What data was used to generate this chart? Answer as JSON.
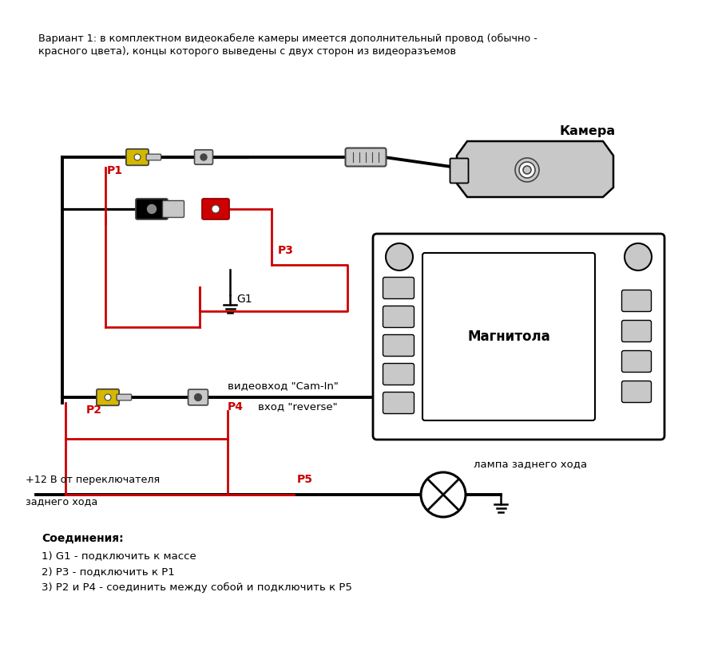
{
  "bg_color": "#ffffff",
  "title_line1": "Вариант 1: в комплектном видеокабеле камеры имеется дополнительный провод (обычно -",
  "title_line2": "красного цвета), концы которого выведены с двух сторон из видеоразъемов",
  "camera_label": "Камера",
  "magnit_label": "Магнитола",
  "p1_label": "P1",
  "p2_label": "P2",
  "p3_label": "P3",
  "p4_label": "P4",
  "p5_label": "P5",
  "g1_label": "G1",
  "camIn_label": "видеовход \"Cam-In\"",
  "reverse_label": "вход \"reverse\"",
  "lamp_label": "лампа заднего хода",
  "plus12_label": "+12 В от переключателя",
  "plus12_label2": "заднего хода",
  "connections_title": "Соединения:",
  "conn1": "1) G1 - подключить к массе",
  "conn2": "2) P3 - подключить к P1",
  "conn3": "3) P2 и P4 - соединить между собой и подключить к P5",
  "black": "#000000",
  "red": "#cc0000",
  "yellow": "#d4b800",
  "gray": "#888888",
  "darkgray": "#444444",
  "lightgray": "#c8c8c8",
  "wire_lw": 2.8,
  "red_lw": 2.0
}
